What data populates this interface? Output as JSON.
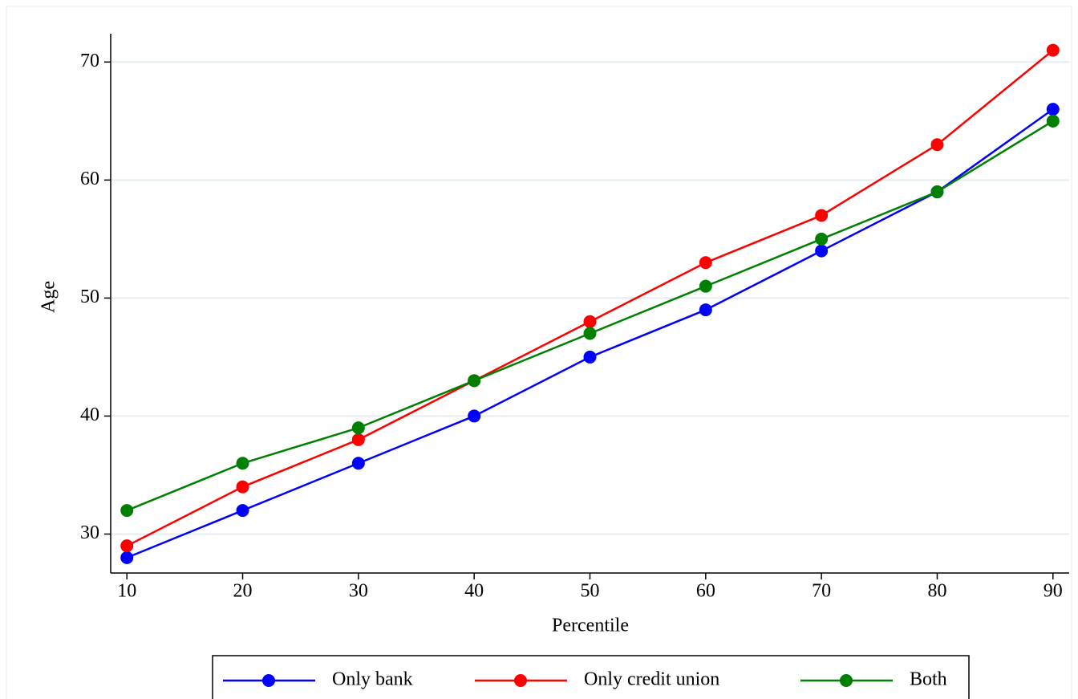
{
  "chart_data": {
    "type": "line",
    "x_label": "Percentile",
    "y_label": "Age",
    "x": [
      10,
      20,
      30,
      40,
      50,
      60,
      70,
      80,
      90
    ],
    "series": [
      {
        "name": "Only bank",
        "color": "#0000ff",
        "values": [
          28,
          32,
          36,
          40,
          45,
          49,
          54,
          59,
          66
        ]
      },
      {
        "name": "Only credit union",
        "color": "#ff0000",
        "values": [
          29,
          34,
          38,
          43,
          48,
          53,
          57,
          63,
          71
        ]
      },
      {
        "name": "Both",
        "color": "#008000",
        "values": [
          32,
          36,
          39,
          43,
          47,
          51,
          55,
          59,
          65
        ]
      }
    ],
    "xlim": [
      8.6,
      91.4
    ],
    "xticks": [
      10,
      20,
      30,
      40,
      50,
      60,
      70,
      80,
      90
    ],
    "ylim": [
      26.7,
      72.4
    ],
    "yticks": [
      30,
      40,
      50,
      60,
      70
    ],
    "grid": true,
    "legend": "bottom"
  }
}
